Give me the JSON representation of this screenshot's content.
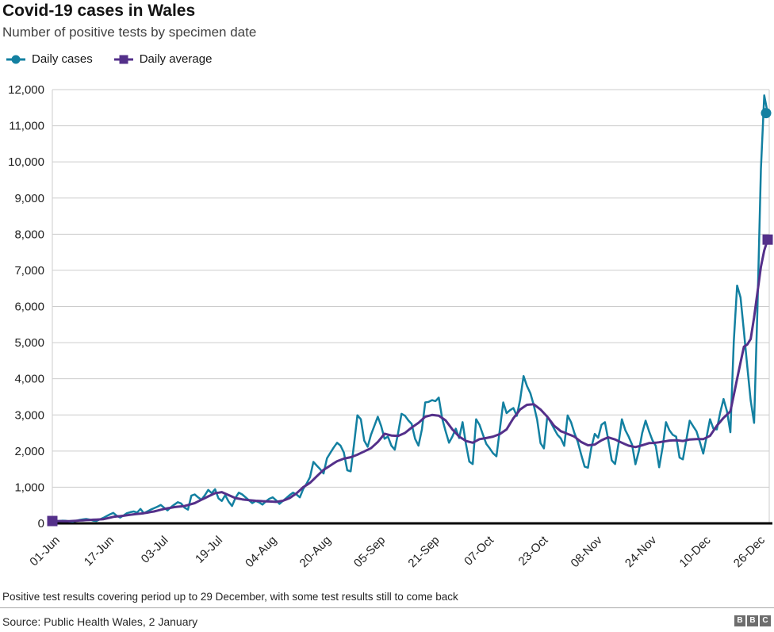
{
  "header": {
    "title": "Covid-19 cases in Wales",
    "subtitle": "Number of positive tests by specimen date"
  },
  "legend": [
    {
      "label": "Daily cases",
      "series": "cases",
      "marker": "circle"
    },
    {
      "label": "Daily average",
      "series": "average",
      "marker": "square"
    }
  ],
  "colors": {
    "cases": "#1380A1",
    "average": "#54308A",
    "grid": "#cccccc",
    "axis": "#000000",
    "text": "#222222",
    "title": "#141414",
    "subtitle": "#404040",
    "divider": "#a8a8a8",
    "logo": "#6d6d6d"
  },
  "chart_data": {
    "type": "line",
    "title": "Covid-19 cases in Wales",
    "xlabel": "",
    "ylabel": "",
    "grid": true,
    "legend_position": "top-left",
    "ylim": [
      0,
      12000
    ],
    "y_ticks": [
      0,
      1000,
      2000,
      3000,
      4000,
      5000,
      6000,
      7000,
      8000,
      9000,
      10000,
      11000,
      12000
    ],
    "x_range": [
      "01-Jun",
      "29-Dec"
    ],
    "x_unit": "day",
    "days_total": 212,
    "x_tick_labels": [
      "01-Jun",
      "17-Jun",
      "03-Jul",
      "19-Jul",
      "04-Aug",
      "20-Aug",
      "05-Sep",
      "21-Sep",
      "07-Oct",
      "23-Oct",
      "08-Nov",
      "24-Nov",
      "10-Dec",
      "26-Dec"
    ],
    "x_tick_days": [
      0,
      16,
      32,
      48,
      64,
      80,
      96,
      112,
      128,
      144,
      160,
      176,
      192,
      208
    ],
    "series": [
      {
        "name": "Daily cases",
        "color": "#1380A1",
        "values": [
          35,
          50,
          65,
          75,
          70,
          55,
          45,
          70,
          95,
          110,
          120,
          105,
          75,
          65,
          110,
          150,
          200,
          250,
          290,
          210,
          160,
          220,
          280,
          310,
          330,
          300,
          400,
          280,
          330,
          380,
          420,
          460,
          510,
          430,
          360,
          450,
          520,
          585,
          550,
          435,
          380,
          765,
          800,
          720,
          655,
          780,
          925,
          835,
          945,
          690,
          620,
          780,
          600,
          480,
          700,
          850,
          800,
          720,
          640,
          560,
          620,
          580,
          520,
          610,
          680,
          720,
          640,
          540,
          620,
          700,
          780,
          850,
          800,
          720,
          950,
          1100,
          1280,
          1700,
          1600,
          1500,
          1380,
          1800,
          1950,
          2100,
          2230,
          2150,
          1960,
          1470,
          1440,
          2200,
          2990,
          2880,
          2290,
          2120,
          2450,
          2700,
          2950,
          2690,
          2340,
          2400,
          2150,
          2040,
          2500,
          3030,
          2980,
          2850,
          2750,
          2340,
          2150,
          2600,
          3345,
          3360,
          3410,
          3380,
          3480,
          2900,
          2550,
          2230,
          2400,
          2620,
          2360,
          2800,
          2200,
          1710,
          1640,
          2880,
          2730,
          2460,
          2200,
          2075,
          1940,
          1855,
          2600,
          3345,
          3050,
          3130,
          3190,
          2975,
          3420,
          4075,
          3800,
          3600,
          3275,
          2870,
          2220,
          2075,
          2950,
          2800,
          2620,
          2450,
          2350,
          2145,
          2985,
          2800,
          2500,
          2255,
          1900,
          1570,
          1540,
          2100,
          2475,
          2370,
          2730,
          2800,
          2300,
          1745,
          1640,
          2200,
          2880,
          2580,
          2400,
          2180,
          1635,
          2000,
          2500,
          2840,
          2550,
          2300,
          2145,
          1550,
          2100,
          2800,
          2580,
          2450,
          2400,
          1820,
          1770,
          2300,
          2840,
          2690,
          2550,
          2250,
          1930,
          2400,
          2880,
          2620,
          2600,
          3070,
          3440,
          3100,
          2520,
          5040,
          6580,
          6250,
          5300,
          4320,
          3400,
          2780,
          6000,
          9800,
          11840,
          11350
        ]
      },
      {
        "name": "Daily average",
        "color": "#54308A",
        "values": [
          65,
          64,
          63,
          62,
          61,
          60,
          66,
          72,
          78,
          84,
          90,
          95,
          100,
          105,
          110,
          115,
          137,
          158,
          180,
          190,
          200,
          210,
          223,
          237,
          250,
          260,
          270,
          280,
          297,
          313,
          330,
          353,
          377,
          400,
          417,
          433,
          450,
          460,
          470,
          480,
          507,
          533,
          560,
          607,
          653,
          700,
          745,
          790,
          835,
          850,
          865,
          823,
          780,
          740,
          700,
          683,
          665,
          653,
          640,
          633,
          625,
          620,
          615,
          610,
          605,
          600,
          595,
          610,
          625,
          663,
          700,
          765,
          830,
          915,
          1000,
          1060,
          1120,
          1210,
          1300,
          1390,
          1480,
          1540,
          1600,
          1660,
          1720,
          1755,
          1790,
          1810,
          1830,
          1865,
          1900,
          1945,
          1990,
          2035,
          2080,
          2165,
          2250,
          2365,
          2480,
          2455,
          2430,
          2425,
          2420,
          2460,
          2500,
          2575,
          2650,
          2715,
          2780,
          2865,
          2950,
          2975,
          3000,
          2990,
          2980,
          2915,
          2850,
          2725,
          2600,
          2500,
          2400,
          2340,
          2280,
          2255,
          2230,
          2280,
          2330,
          2345,
          2360,
          2380,
          2400,
          2435,
          2470,
          2535,
          2600,
          2755,
          2910,
          3030,
          3150,
          3215,
          3280,
          3288,
          3295,
          3223,
          3150,
          3050,
          2950,
          2825,
          2700,
          2625,
          2550,
          2513,
          2475,
          2438,
          2400,
          2325,
          2250,
          2205,
          2160,
          2170,
          2180,
          2240,
          2300,
          2340,
          2380,
          2350,
          2320,
          2275,
          2230,
          2190,
          2150,
          2130,
          2110,
          2135,
          2160,
          2190,
          2220,
          2225,
          2230,
          2245,
          2260,
          2275,
          2290,
          2295,
          2300,
          2290,
          2280,
          2300,
          2320,
          2325,
          2330,
          2330,
          2330,
          2375,
          2420,
          2560,
          2700,
          2810,
          2920,
          3010,
          3100,
          3550,
          4000,
          4450,
          4890,
          4950,
          5100,
          5700,
          6400,
          7100,
          7550,
          7850
        ]
      }
    ]
  },
  "footer": {
    "note": "Positive test results covering period up to 29 December, with some test results still to come back",
    "source": "Source: Public Health Wales, 2 January",
    "logo_letters": [
      "B",
      "B",
      "C"
    ]
  }
}
